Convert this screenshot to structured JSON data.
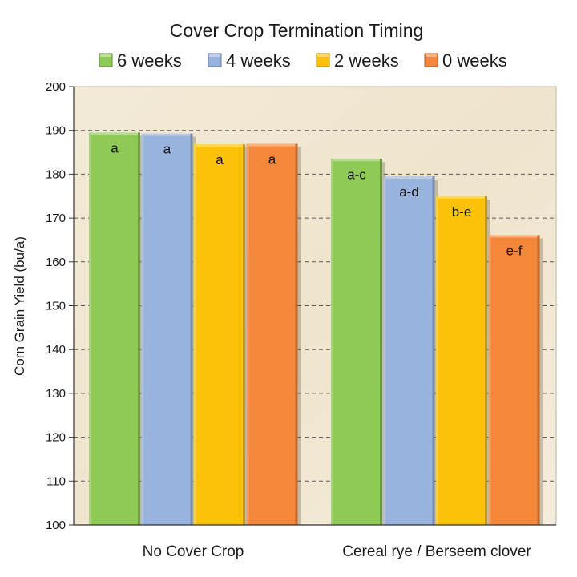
{
  "chart_data": {
    "type": "bar",
    "title": "Cover Crop Termination Timing",
    "xlabel": "",
    "ylabel": "Corn Grain Yield (bu/a)",
    "ylim": [
      100,
      200
    ],
    "yticks": [
      100,
      110,
      120,
      130,
      140,
      150,
      160,
      170,
      180,
      190,
      200
    ],
    "grid": true,
    "legend_position": "top",
    "categories": [
      "No Cover Crop",
      "Cereal rye / Berseem clover"
    ],
    "series": [
      {
        "name": "6 weeks",
        "color": "#8fc956",
        "values": [
          189.5,
          183.5
        ],
        "labels": [
          "a",
          "a-c"
        ]
      },
      {
        "name": "4 weeks",
        "color": "#98b3dd",
        "values": [
          189.3,
          179.5
        ],
        "labels": [
          "a",
          "a-d"
        ]
      },
      {
        "name": "2 weeks",
        "color": "#fcc20a",
        "values": [
          186.8,
          175.0
        ],
        "labels": [
          "a",
          "b-e"
        ]
      },
      {
        "name": "0 weeks",
        "color": "#f5873a",
        "values": [
          186.9,
          166.1
        ],
        "labels": [
          "a",
          "e-f"
        ]
      }
    ]
  }
}
